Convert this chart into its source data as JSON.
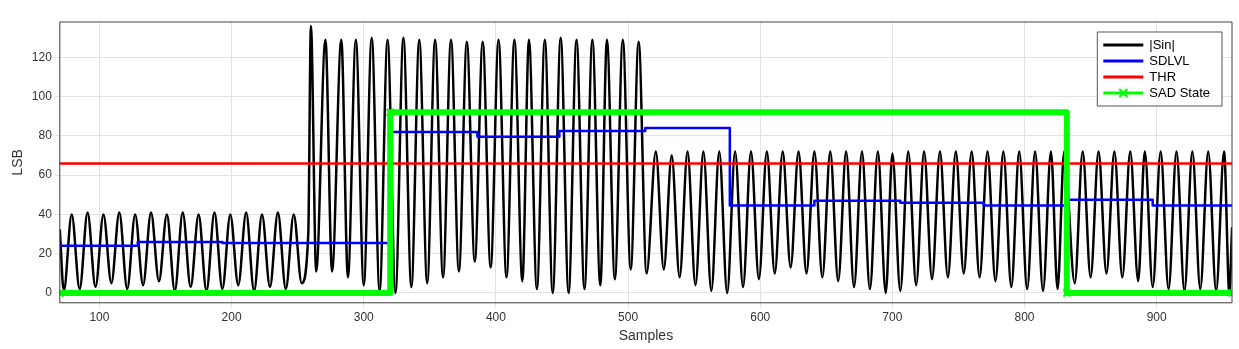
{
  "chart_data": {
    "type": "line",
    "xlabel": "Samples",
    "ylabel": "LSB",
    "xlim": [
      70,
      957
    ],
    "ylim": [
      -5,
      138
    ],
    "xticks": [
      100,
      200,
      300,
      400,
      500,
      600,
      700,
      800,
      900
    ],
    "yticks": [
      0,
      20,
      40,
      60,
      80,
      100,
      120
    ],
    "grid": true,
    "legend": "top right",
    "marker": "none",
    "line_style": "solid",
    "series": [
      {
        "name": "|Sin|",
        "type": "line",
        "color": "#000000",
        "x": [
          70,
          73,
          79,
          85,
          91,
          97,
          103,
          109,
          115,
          121,
          127,
          133,
          139,
          145,
          151,
          157,
          163,
          169,
          175,
          181,
          187,
          193,
          199,
          205,
          211,
          217,
          223,
          229,
          235,
          241,
          247,
          253,
          258,
          260,
          264,
          271,
          276,
          283,
          288,
          294,
          300,
          306,
          312,
          318,
          324,
          330,
          336,
          342,
          348,
          354,
          360,
          366,
          372,
          378,
          384,
          390,
          396,
          402,
          408,
          414,
          420,
          425,
          431,
          437,
          443,
          449,
          455,
          461,
          467,
          473,
          479,
          484,
          490,
          496,
          502,
          508,
          514,
          521,
          527,
          533,
          539,
          545,
          551,
          557,
          563,
          569,
          575,
          581,
          587,
          593,
          599,
          605,
          611,
          617,
          623,
          629,
          635,
          641,
          647,
          653,
          659,
          665,
          671,
          677,
          683,
          689,
          695,
          700,
          706,
          712,
          718,
          724,
          730,
          736,
          742,
          748,
          754,
          760,
          766,
          772,
          778,
          784,
          790,
          796,
          802,
          808,
          814,
          820,
          825,
          830,
          838,
          844,
          850,
          856,
          862,
          868,
          874,
          880,
          886,
          891,
          897,
          903,
          909,
          915,
          921,
          927,
          933,
          939,
          945,
          951,
          955,
          957
        ],
        "values": [
          32,
          1,
          40,
          2,
          41,
          3,
          40,
          5,
          41,
          2,
          40,
          4,
          41,
          6,
          40,
          1,
          41,
          3,
          40,
          1,
          41,
          2,
          40,
          4,
          41,
          1,
          40,
          3,
          41,
          2,
          40,
          5,
          30,
          136,
          11,
          129,
          11,
          129,
          8,
          129,
          4,
          130,
          1,
          129,
          0,
          130,
          3,
          129,
          5,
          129,
          8,
          129,
          11,
          128,
          16,
          128,
          13,
          129,
          8,
          129,
          6,
          129,
          2,
          129,
          0,
          130,
          0,
          129,
          2,
          129,
          4,
          129,
          7,
          129,
          12,
          128,
          10,
          72,
          12,
          70,
          8,
          72,
          4,
          72,
          1,
          72,
          0,
          72,
          3,
          72,
          7,
          72,
          10,
          72,
          13,
          72,
          10,
          72,
          8,
          72,
          6,
          72,
          3,
          72,
          2,
          72,
          0,
          71,
          1,
          72,
          4,
          72,
          7,
          72,
          8,
          72,
          10,
          72,
          8,
          72,
          6,
          72,
          3,
          72,
          2,
          72,
          1,
          72,
          2,
          72,
          5,
          72,
          8,
          72,
          10,
          72,
          8,
          72,
          6,
          72,
          3,
          72,
          2,
          72,
          1,
          72,
          2,
          72,
          1,
          72,
          0,
          33
        ]
      },
      {
        "name": "SDLVL",
        "type": "step",
        "color": "#0000ff",
        "x": [
          70,
          129,
          193,
          321,
          386,
          448,
          513,
          577,
          641,
          706,
          769,
          833,
          897,
          957
        ],
        "values": [
          24,
          26,
          25.5,
          82,
          79.5,
          82.5,
          84,
          44.5,
          47,
          46,
          44.5,
          47.5,
          44.5,
          44.5
        ]
      },
      {
        "name": "THR",
        "type": "line",
        "color": "#ff0000",
        "x": [
          70,
          957
        ],
        "values": [
          66,
          66
        ]
      },
      {
        "name": "SAD State",
        "type": "step",
        "color": "#00ff00",
        "marker": "cross",
        "x": [
          70,
          320,
          832,
          957
        ],
        "values": [
          0,
          92,
          0,
          0
        ]
      }
    ]
  }
}
